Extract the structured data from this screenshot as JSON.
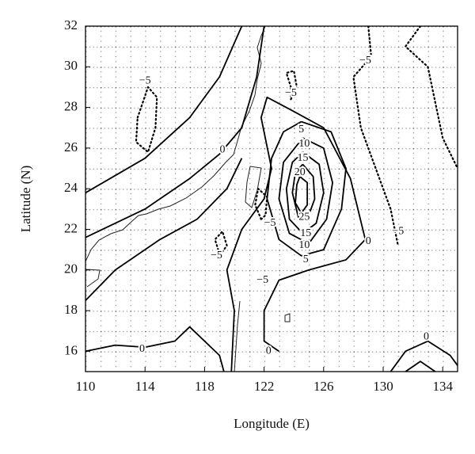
{
  "chart_data": {
    "type": "contour",
    "xlabel": "Longitude (E)",
    "ylabel": "Latitude (N)",
    "xlim": [
      110,
      135
    ],
    "ylim": [
      15,
      32
    ],
    "xticks": [
      110,
      114,
      118,
      122,
      126,
      130,
      134
    ],
    "yticks": [
      16,
      18,
      20,
      22,
      24,
      26,
      28,
      30,
      32
    ],
    "grid": true,
    "contours": [
      {
        "level": 0,
        "x": [
          110,
          114,
          117,
          119,
          120.5
        ],
        "y": [
          23.8,
          25.5,
          27.5,
          29.5,
          32
        ]
      },
      {
        "level": 0,
        "x": [
          110,
          114,
          117,
          119,
          120.5,
          121.5,
          122
        ],
        "y": [
          21.6,
          23,
          24.5,
          25.7,
          27,
          29.5,
          32
        ]
      },
      {
        "level": 0,
        "x": [
          110,
          112,
          115,
          117.5,
          119.5,
          120.5
        ],
        "y": [
          18.5,
          20,
          21.5,
          22.5,
          24,
          25.5
        ]
      },
      {
        "level": 0,
        "x": [
          119.8,
          120,
          119.5,
          120.5,
          122,
          122.5,
          121.8,
          122.2,
          124,
          126,
          127.8,
          128.8
        ],
        "y": [
          15,
          18,
          20,
          22,
          23.5,
          25,
          27.5,
          28.5,
          27.8,
          27,
          24.5,
          21.5
        ]
      },
      {
        "level": 0,
        "x": [
          128.8,
          127.5,
          125,
          123,
          122,
          122,
          123
        ],
        "y": [
          21.5,
          20.5,
          20,
          19.5,
          18,
          16.5,
          16
        ]
      },
      {
        "level": 0,
        "x": [
          110,
          112,
          114,
          116,
          117,
          118,
          119,
          119.3
        ],
        "y": [
          16,
          16.3,
          16.2,
          16.5,
          17.2,
          16.5,
          15.8,
          15
        ]
      },
      {
        "level": 0,
        "x": [
          130.5,
          131.5,
          133,
          134.5,
          135
        ],
        "y": [
          15,
          16,
          16.5,
          15.8,
          15.3
        ]
      },
      {
        "level": 0,
        "x": [
          131.5,
          132.5,
          133.5
        ],
        "y": [
          15,
          15.5,
          15
        ]
      },
      {
        "level": 5,
        "x": [
          124.5,
          126.5,
          127.5,
          127.2,
          126,
          124.5,
          123,
          122.2,
          122.5,
          123.3,
          124.5
        ],
        "y": [
          27.3,
          26.8,
          25,
          23,
          21,
          20.7,
          21.5,
          23.5,
          25.5,
          26.8,
          27.3
        ]
      },
      {
        "level": 10,
        "x": [
          124.6,
          126,
          126.6,
          126.2,
          125,
          123.7,
          123,
          123.3,
          124.6
        ],
        "y": [
          26.5,
          26,
          24.3,
          22.5,
          21.3,
          21.8,
          23.5,
          25.3,
          26.5
        ]
      },
      {
        "level": 15,
        "x": [
          124.6,
          125.7,
          126,
          125.5,
          124.6,
          123.7,
          123.5,
          123.9,
          124.6
        ],
        "y": [
          25.8,
          25.2,
          23.8,
          22.3,
          21.8,
          22.5,
          24,
          25.3,
          25.8
        ]
      },
      {
        "level": 20,
        "x": [
          124.6,
          125.3,
          125.4,
          124.9,
          124.3,
          123.9,
          124.1,
          124.6
        ],
        "y": [
          25.2,
          24.6,
          23.5,
          22.5,
          22.6,
          23.8,
          24.8,
          25.2
        ]
      },
      {
        "level": 25,
        "x": [
          124.4,
          124.9,
          124.9,
          124.5,
          124.1,
          124.2,
          124.4
        ],
        "y": [
          24.6,
          24.3,
          23.2,
          22.8,
          23.3,
          24.2,
          24.6
        ]
      },
      {
        "level": -5,
        "x": [
          113.5,
          114.2,
          114.8,
          114.7,
          114.2,
          113.4,
          113.5
        ],
        "y": [
          27.5,
          29,
          28.5,
          27,
          25.8,
          26.3,
          27.5
        ]
      },
      {
        "level": -5,
        "x": [
          129,
          129.2,
          128,
          128.5,
          129.5,
          130.5,
          131
        ],
        "y": [
          32,
          30.5,
          29.5,
          27,
          25,
          23,
          21.2
        ]
      },
      {
        "level": -5,
        "x": [
          132.5,
          131.5,
          133,
          134,
          135
        ],
        "y": [
          32,
          31,
          30,
          26.5,
          25
        ]
      },
      {
        "level": -5,
        "x": [
          123.8,
          123.5,
          124,
          124.2,
          123.8,
          123.8
        ],
        "y": [
          29,
          29.7,
          29.8,
          29,
          28.4,
          29
        ]
      },
      {
        "level": -5,
        "x": [
          121.8,
          121.4,
          121.6,
          122.2,
          122.1,
          121.8
        ],
        "y": [
          22.5,
          23.2,
          24,
          23.6,
          22.7,
          22.5
        ]
      },
      {
        "level": -5,
        "x": [
          119,
          118.7,
          119.2,
          119.5,
          119,
          119
        ],
        "y": [
          20.8,
          21.5,
          21.9,
          21.2,
          20.7,
          20.8
        ]
      }
    ],
    "contour_labels": [
      {
        "text": "−5",
        "x": 114,
        "y": 29.3
      },
      {
        "text": "−5",
        "x": 123.8,
        "y": 28.7
      },
      {
        "text": "−5",
        "x": 128.8,
        "y": 30.3
      },
      {
        "text": "5",
        "x": 124.5,
        "y": 26.9
      },
      {
        "text": "10",
        "x": 124.7,
        "y": 26.2
      },
      {
        "text": "15",
        "x": 124.6,
        "y": 25.5
      },
      {
        "text": "20",
        "x": 124.4,
        "y": 24.8
      },
      {
        "text": "25",
        "x": 124.7,
        "y": 22.6
      },
      {
        "text": "15",
        "x": 124.8,
        "y": 21.8
      },
      {
        "text": "10",
        "x": 124.7,
        "y": 21.2
      },
      {
        "text": "5",
        "x": 124.8,
        "y": 20.5
      },
      {
        "text": "0",
        "x": 129,
        "y": 21.4
      },
      {
        "text": "−5",
        "x": 131,
        "y": 21.9
      },
      {
        "text": "−5",
        "x": 122.4,
        "y": 22.3
      },
      {
        "text": "−5",
        "x": 118.8,
        "y": 20.7
      },
      {
        "text": "−5",
        "x": 121.9,
        "y": 19.5
      },
      {
        "text": "0",
        "x": 119.2,
        "y": 25.9
      },
      {
        "text": "0",
        "x": 113.8,
        "y": 16.1
      },
      {
        "text": "0",
        "x": 122.3,
        "y": 16
      },
      {
        "text": "0",
        "x": 132.9,
        "y": 16.7
      }
    ]
  }
}
